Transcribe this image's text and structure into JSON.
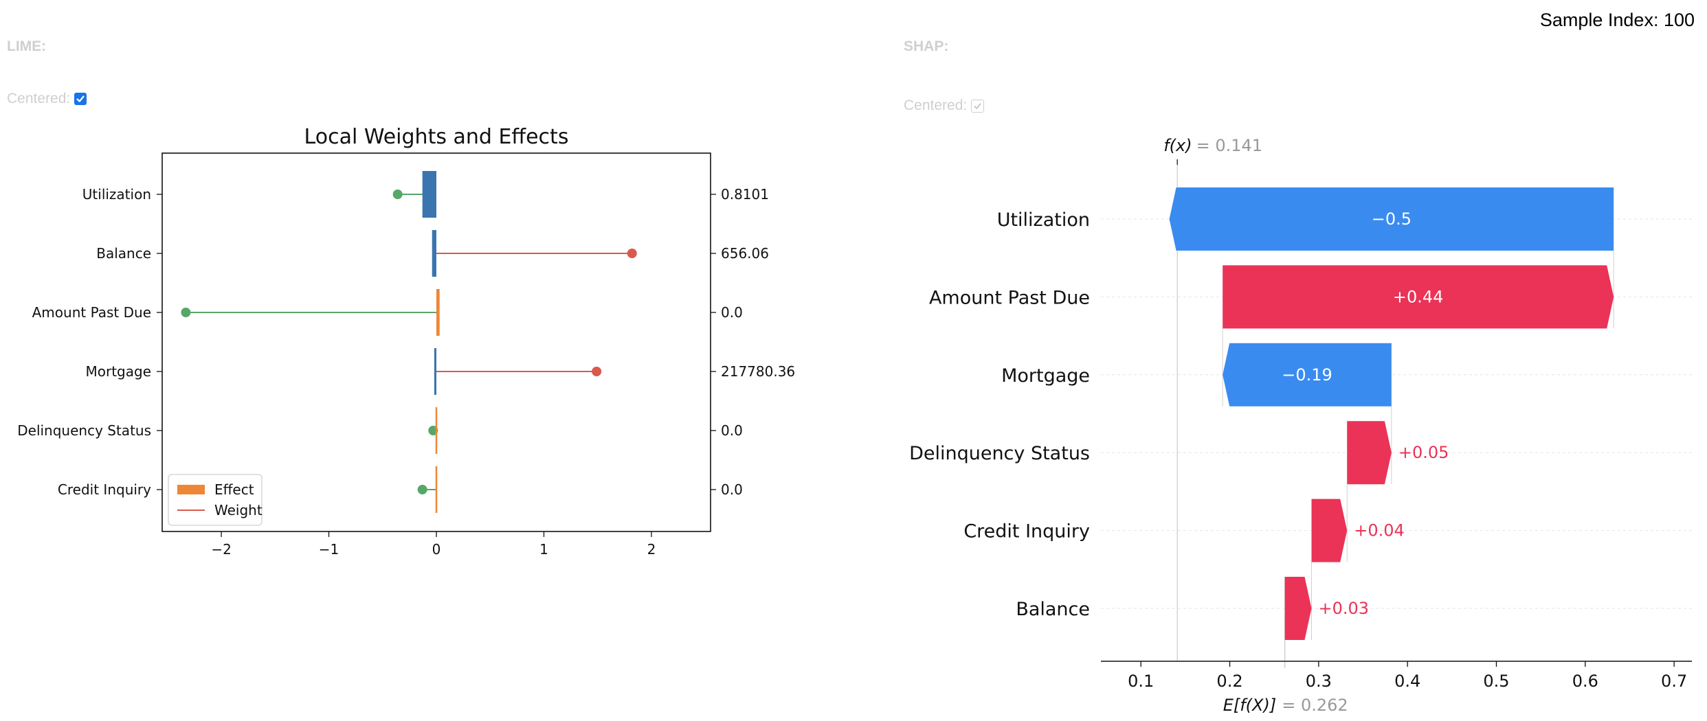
{
  "sample_index_label": "Sample Index: 100",
  "lime": {
    "label": "LIME:",
    "centered_label": "Centered:",
    "centered_checked": true
  },
  "shap": {
    "label": "SHAP:",
    "centered_label": "Centered:",
    "centered_checked": true
  },
  "colors": {
    "effect_positive": "#ef8636",
    "effect_negative": "#3a75b0",
    "weight_positive": "#d9594c",
    "weight_negative": "#55a868",
    "shap_positive": "#ea3356",
    "shap_negative": "#3a8bef"
  },
  "chart_data": [
    {
      "type": "bar",
      "title": "Local Weights and Effects",
      "categories": [
        "Utilization",
        "Balance",
        "Amount Past Due",
        "Mortgage",
        "Delinquency Status",
        "Credit Inquiry"
      ],
      "feature_values": [
        "0.8101",
        "656.06",
        "0.0",
        "217780.36",
        "0.0",
        "0.0"
      ],
      "series": [
        {
          "name": "Effect",
          "values": [
            -0.13,
            -0.04,
            0.03,
            -0.02,
            0.0,
            0.0
          ]
        },
        {
          "name": "Weight",
          "values": [
            -0.36,
            1.82,
            -2.33,
            1.49,
            -0.03,
            -0.13
          ]
        }
      ],
      "xlim": [
        -2.55,
        2.55
      ],
      "xticks": [
        -2,
        -1,
        0,
        1,
        2
      ],
      "xtick_labels": [
        "−2",
        "−1",
        "0",
        "1",
        "2"
      ],
      "legend_position": "lower-left",
      "grid": false
    },
    {
      "type": "waterfall",
      "categories": [
        "Utilization",
        "Amount Past Due",
        "Mortgage",
        "Delinquency Status",
        "Credit Inquiry",
        "Balance"
      ],
      "values": [
        -0.5,
        0.44,
        -0.19,
        0.05,
        0.04,
        0.03
      ],
      "value_labels": [
        "−0.5",
        "+0.44",
        "−0.19",
        "+0.05",
        "+0.04",
        "+0.03"
      ],
      "base_value": 0.262,
      "fx_value": 0.141,
      "fx_label": "f(x)",
      "fx_value_label": "= 0.141",
      "ex_label": "E[f(X)]",
      "ex_value_label": "= 0.262",
      "xlim": [
        0.055,
        0.72
      ],
      "xticks": [
        0.1,
        0.2,
        0.3,
        0.4,
        0.5,
        0.6,
        0.7
      ],
      "xtick_labels": [
        "0.1",
        "0.2",
        "0.3",
        "0.4",
        "0.5",
        "0.6",
        "0.7"
      ]
    }
  ]
}
